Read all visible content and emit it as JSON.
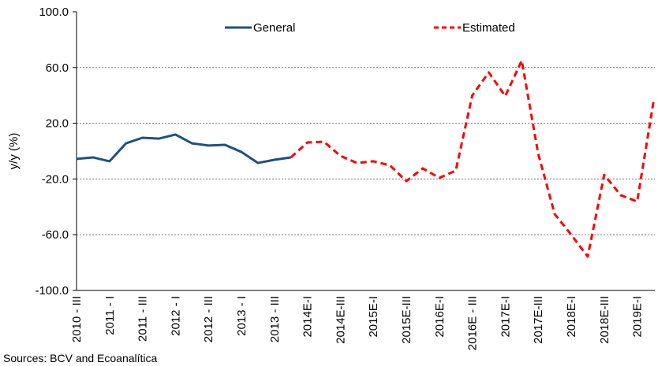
{
  "chart_data": {
    "type": "line",
    "ylabel": "y/y (%)",
    "source": "Sources: BCV and Ecoanalítica",
    "categories": [
      "2010 - III",
      null,
      "2011 - I",
      null,
      "2011 - III",
      null,
      "2012 - I",
      null,
      "2012 - III",
      null,
      "2013 - I",
      null,
      "2013 - III",
      null,
      "2014E-I",
      null,
      "2014E-III",
      null,
      "2015E-I",
      null,
      "2015E-III",
      null,
      "2016E-I",
      null,
      "2016E - III",
      null,
      "2017E-I",
      null,
      "2017E-III",
      null,
      "2018E-I",
      null,
      "2018E-III",
      null,
      "2019E-I",
      null
    ],
    "series": [
      {
        "name": "General",
        "color": "#1f5081",
        "dashed": false,
        "values": [
          -5.6,
          -4.5,
          -7.3,
          5.6,
          9.6,
          9.0,
          11.9,
          5.6,
          4.0,
          4.5,
          -0.6,
          -8.5,
          -6.2,
          -4.5,
          null,
          null,
          null,
          null,
          null,
          null,
          null,
          null,
          null,
          null,
          null,
          null,
          null,
          null,
          null,
          null,
          null,
          null,
          null,
          null,
          null,
          null
        ]
      },
      {
        "name": "Estimated",
        "color": "#ff0000",
        "dashed": true,
        "values": [
          null,
          null,
          null,
          null,
          null,
          null,
          null,
          null,
          null,
          null,
          null,
          null,
          null,
          -4.5,
          6.2,
          6.8,
          -3.4,
          -8.5,
          -7.3,
          -10.2,
          -21.5,
          -12.4,
          -19.2,
          -14.0,
          40.0,
          56.5,
          39.5,
          65.0,
          -2.0,
          -45.2,
          -60.0,
          -75.7,
          -17.0,
          -31.6,
          -36.2,
          36.2
        ]
      }
    ],
    "ylim": [
      -100,
      100
    ],
    "yticks": [
      {
        "value": -100,
        "label": "-100.0"
      },
      {
        "value": -60,
        "label": "-60.0"
      },
      {
        "value": -20,
        "label": "-20.0"
      },
      {
        "value": 20,
        "label": "20.0"
      },
      {
        "value": 60,
        "label": "60.0"
      },
      {
        "value": 100,
        "label": "100.0"
      }
    ],
    "grid": true,
    "legend": "top"
  }
}
